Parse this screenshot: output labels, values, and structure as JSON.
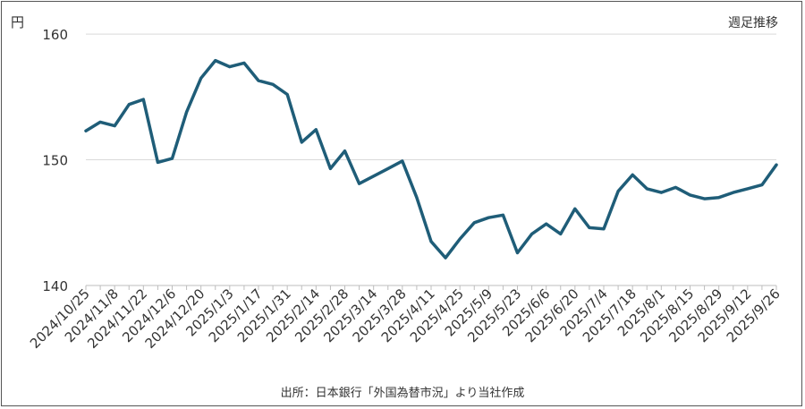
{
  "chart_data": {
    "type": "line",
    "y_unit_label": "円",
    "legend_note": "週足推移",
    "source": "出所：日本銀行「外国為替市況」より当社作成",
    "ylim": [
      140,
      162
    ],
    "y_ticks": [
      140,
      150,
      160
    ],
    "grid": "horizontal",
    "line_color": "#1f5d78",
    "tick_labels": [
      "2024/10/25",
      "2024/11/8",
      "2024/11/22",
      "2024/12/6",
      "2024/12/20",
      "2025/1/3",
      "2025/1/17",
      "2025/1/31",
      "2025/2/14",
      "2025/2/28",
      "2025/3/14",
      "2025/3/28",
      "2025/4/11",
      "2025/4/25",
      "2025/5/9",
      "2025/5/23",
      "2025/6/6",
      "2025/6/20",
      "2025/7/4",
      "2025/7/18",
      "2025/8/1",
      "2025/8/15",
      "2025/8/29",
      "2025/9/12",
      "2025/9/26"
    ],
    "series": [
      {
        "values": [
          152.3,
          153.0,
          152.7,
          154.4,
          154.8,
          149.8,
          150.1,
          153.8,
          156.5,
          157.9,
          157.4,
          157.7,
          156.3,
          156.0,
          155.2,
          151.4,
          152.4,
          149.3,
          150.7,
          148.1,
          148.7,
          149.3,
          149.9,
          147.0,
          143.5,
          142.2,
          143.7,
          145.0,
          145.4,
          145.6,
          142.6,
          144.1,
          144.9,
          144.1,
          146.1,
          144.6,
          144.5,
          147.5,
          148.8,
          147.7,
          147.4,
          147.8,
          147.2,
          146.9,
          147.0,
          147.4,
          147.7,
          148.0,
          149.6
        ]
      }
    ]
  }
}
